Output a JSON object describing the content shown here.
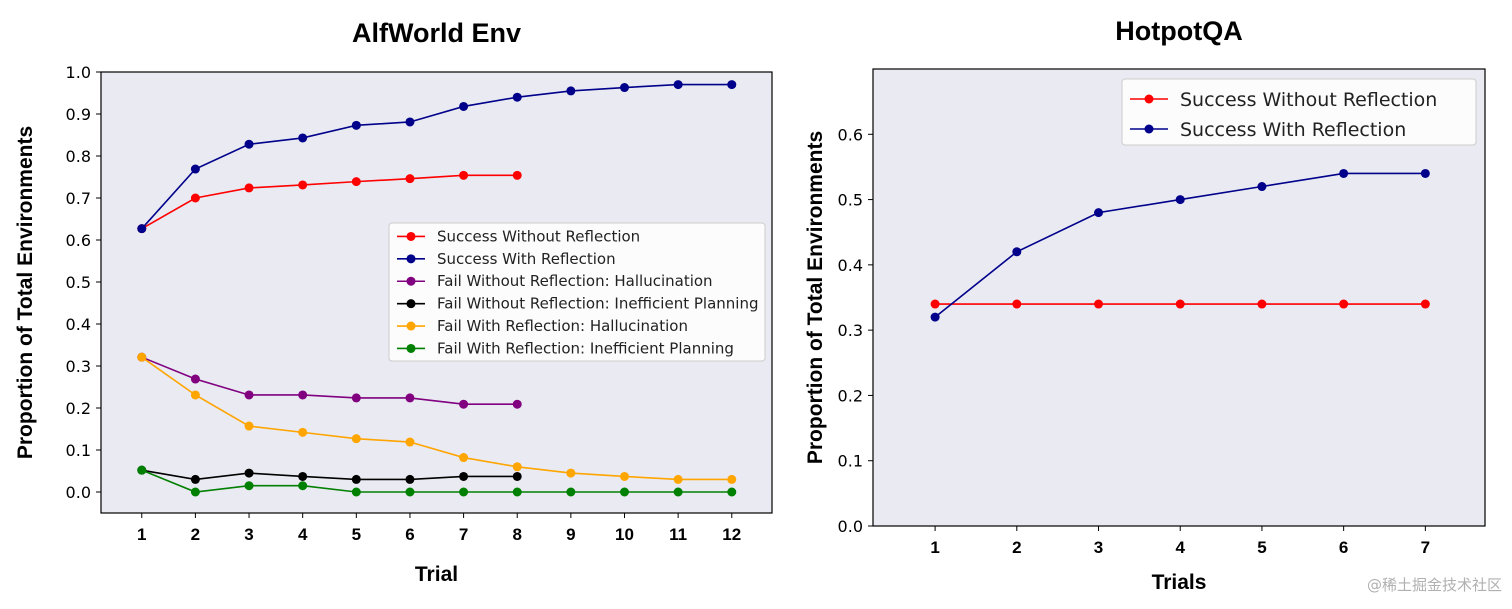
{
  "chart_data": [
    {
      "type": "line",
      "title": "AlfWorld Env",
      "xlabel": "Trial",
      "ylabel": "Proportion of Total Environments",
      "xlim": [
        0.24,
        12.75
      ],
      "ylim": [
        -0.05,
        1.0
      ],
      "xticks": [
        1,
        2,
        3,
        4,
        5,
        6,
        7,
        8,
        9,
        10,
        11,
        12
      ],
      "yticks": [
        0.0,
        0.1,
        0.2,
        0.3,
        0.4,
        0.5,
        0.6,
        0.7,
        0.8,
        0.9,
        1.0
      ],
      "grid": false,
      "background": "#eaeaf2",
      "legend_placement": "center-right",
      "series": [
        {
          "name": "Success Without Reflection",
          "color": "#ff0000",
          "x": [
            1,
            2,
            3,
            4,
            5,
            6,
            7,
            8
          ],
          "y": [
            0.627,
            0.7,
            0.724,
            0.731,
            0.739,
            0.746,
            0.754,
            0.754
          ]
        },
        {
          "name": "Success With Reflection",
          "color": "#00008b",
          "x": [
            1,
            2,
            3,
            4,
            5,
            6,
            7,
            8,
            9,
            10,
            11,
            12
          ],
          "y": [
            0.627,
            0.769,
            0.828,
            0.843,
            0.873,
            0.881,
            0.918,
            0.94,
            0.955,
            0.963,
            0.97,
            0.97
          ]
        },
        {
          "name": "Fail Without Reflection: Hallucination",
          "color": "#800080",
          "x": [
            1,
            2,
            3,
            4,
            5,
            6,
            7,
            8
          ],
          "y": [
            0.321,
            0.269,
            0.231,
            0.231,
            0.224,
            0.224,
            0.209,
            0.209
          ]
        },
        {
          "name": "Fail Without Reflection: Inefficient Planning",
          "color": "#000000",
          "x": [
            1,
            2,
            3,
            4,
            5,
            6,
            7,
            8
          ],
          "y": [
            0.052,
            0.03,
            0.045,
            0.037,
            0.03,
            0.03,
            0.037,
            0.037
          ]
        },
        {
          "name": "Fail With Reflection: Hallucination",
          "color": "#ffa500",
          "x": [
            1,
            2,
            3,
            4,
            5,
            6,
            7,
            8,
            9,
            10,
            11,
            12
          ],
          "y": [
            0.321,
            0.231,
            0.157,
            0.142,
            0.127,
            0.119,
            0.082,
            0.06,
            0.045,
            0.037,
            0.03,
            0.03
          ]
        },
        {
          "name": "Fail With Reflection: Inefficient Planning",
          "color": "#008000",
          "x": [
            1,
            2,
            3,
            4,
            5,
            6,
            7,
            8,
            9,
            10,
            11,
            12
          ],
          "y": [
            0.052,
            0.0,
            0.015,
            0.015,
            0.0,
            0.0,
            0.0,
            0.0,
            0.0,
            0.0,
            0.0,
            0.0
          ]
        }
      ]
    },
    {
      "type": "line",
      "title": "HotpotQA",
      "xlabel": "Trials",
      "ylabel": "Proportion of Total Environments",
      "xlim": [
        0.24,
        7.73
      ],
      "ylim": [
        0.0,
        0.7
      ],
      "xticks": [
        1,
        2,
        3,
        4,
        5,
        6,
        7
      ],
      "yticks": [
        0.0,
        0.1,
        0.2,
        0.3,
        0.4,
        0.5,
        0.6
      ],
      "grid": false,
      "background": "#eaeaf2",
      "legend_placement": "top-right",
      "series": [
        {
          "name": "Success Without Reflection",
          "color": "#ff0000",
          "x": [
            1,
            2,
            3,
            4,
            5,
            6,
            7
          ],
          "y": [
            0.34,
            0.34,
            0.34,
            0.34,
            0.34,
            0.34,
            0.34
          ]
        },
        {
          "name": "Success With Reflection",
          "color": "#00008b",
          "x": [
            1,
            2,
            3,
            4,
            5,
            6,
            7
          ],
          "y": [
            0.32,
            0.42,
            0.48,
            0.5,
            0.52,
            0.54,
            0.54
          ]
        }
      ]
    }
  ],
  "watermark": "@稀土掘金技术社区"
}
